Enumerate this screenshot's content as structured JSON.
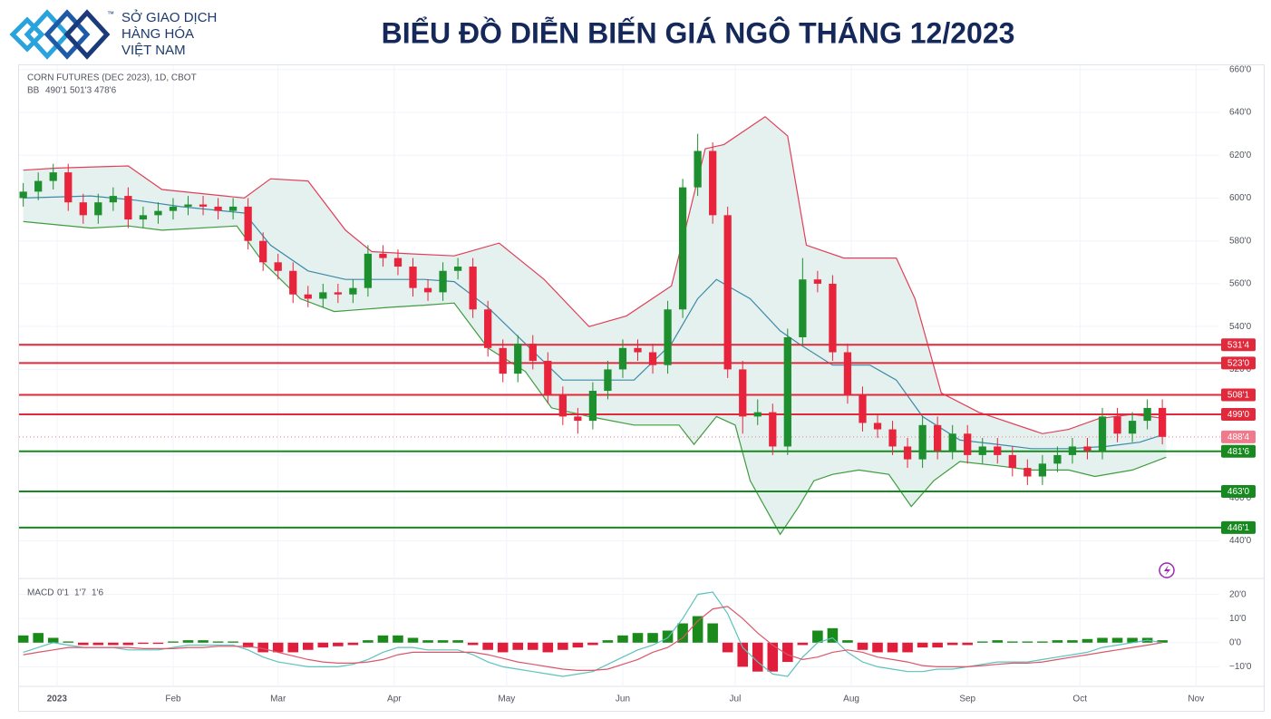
{
  "header": {
    "brand": [
      "SỞ GIAO DỊCH",
      "HÀNG HÓA",
      "VIỆT NAM"
    ],
    "trademark": "™",
    "title": "BIỂU ĐỒ DIỄN BIẾN GIÁ NGÔ THÁNG 12/2023"
  },
  "chart_data": [
    {
      "type": "candlestick",
      "title": "CORN FUTURES (DEC 2023), 1D, CBOT",
      "indicator": "BB",
      "up_color": "#1e8f2e",
      "down_color": "#e8243c",
      "grid": true,
      "xlim": [
        -9.4,
        309
      ],
      "xticks": [
        {
          "value": 0,
          "label": "2023"
        },
        {
          "value": 31,
          "label": "Feb"
        },
        {
          "value": 59,
          "label": "Mar"
        },
        {
          "value": 90,
          "label": "Apr"
        },
        {
          "value": 120,
          "label": "May"
        },
        {
          "value": 151,
          "label": "Jun"
        },
        {
          "value": 181,
          "label": "Jul"
        },
        {
          "value": 212,
          "label": "Aug"
        },
        {
          "value": 243,
          "label": "Sep"
        },
        {
          "value": 273,
          "label": "Oct"
        },
        {
          "value": 304,
          "label": "Nov"
        }
      ],
      "ylim": [
        430,
        662
      ],
      "yticks": [
        {
          "value": 440,
          "label": "440'0"
        },
        {
          "value": 460,
          "label": "460'0"
        },
        {
          "value": 480,
          "label": "480'0"
        },
        {
          "value": 500,
          "label": "500'0"
        },
        {
          "value": 520,
          "label": "520'0"
        },
        {
          "value": 540,
          "label": "540'0"
        },
        {
          "value": 560,
          "label": "560'0"
        },
        {
          "value": 580,
          "label": "580'0"
        },
        {
          "value": 600,
          "label": "600'0"
        },
        {
          "value": 620,
          "label": "620'0"
        },
        {
          "value": 640,
          "label": "640'0"
        },
        {
          "value": 660,
          "label": "660'0"
        }
      ],
      "x": [
        -9,
        -5,
        -1,
        3,
        7,
        11,
        15,
        19,
        23,
        27,
        31,
        35,
        39,
        43,
        47,
        51,
        55,
        59,
        63,
        67,
        71,
        75,
        79,
        83,
        87,
        91,
        95,
        99,
        103,
        107,
        111,
        115,
        119,
        123,
        127,
        131,
        135,
        139,
        143,
        147,
        151,
        155,
        159,
        163,
        167,
        171,
        175,
        179,
        183,
        187,
        191,
        195,
        199,
        203,
        207,
        211,
        215,
        219,
        223,
        227,
        231,
        235,
        239,
        243,
        247,
        251,
        255,
        259,
        263,
        267,
        271,
        275,
        279,
        283,
        287,
        291,
        295
      ],
      "open": [
        600,
        603,
        608,
        612,
        598,
        592,
        598,
        601,
        590,
        592,
        594,
        596,
        597,
        596,
        594,
        596,
        580,
        570,
        566,
        555,
        553,
        556,
        555,
        558,
        574,
        572,
        568,
        558,
        556,
        566,
        568,
        548,
        530,
        518,
        532,
        524,
        508,
        498,
        496,
        510,
        520,
        530,
        528,
        522,
        548,
        605,
        622,
        592,
        520,
        498,
        500,
        484,
        535,
        562,
        560,
        528,
        508,
        495,
        492,
        484,
        478,
        494,
        482,
        490,
        480,
        484,
        480,
        474,
        470,
        476,
        480,
        484,
        482,
        498,
        490,
        496,
        502
      ],
      "high": [
        607,
        612,
        616,
        616,
        602,
        602,
        605,
        605,
        596,
        598,
        600,
        601,
        601,
        600,
        600,
        600,
        584,
        574,
        570,
        559,
        560,
        560,
        562,
        578,
        578,
        576,
        572,
        562,
        570,
        572,
        572,
        552,
        534,
        536,
        536,
        528,
        512,
        502,
        514,
        524,
        534,
        534,
        532,
        552,
        609,
        630,
        626,
        596,
        524,
        506,
        504,
        539,
        572,
        566,
        564,
        532,
        512,
        499,
        496,
        488,
        498,
        498,
        494,
        494,
        488,
        488,
        484,
        478,
        480,
        484,
        488,
        488,
        502,
        502,
        500,
        506,
        506
      ],
      "low": [
        596,
        599,
        604,
        594,
        588,
        588,
        594,
        586,
        586,
        588,
        590,
        592,
        592,
        590,
        590,
        576,
        566,
        562,
        551,
        549,
        549,
        551,
        551,
        554,
        568,
        564,
        554,
        552,
        552,
        562,
        544,
        526,
        514,
        514,
        520,
        504,
        494,
        490,
        492,
        506,
        516,
        524,
        518,
        518,
        544,
        601,
        588,
        516,
        490,
        494,
        480,
        480,
        531,
        556,
        524,
        504,
        491,
        488,
        480,
        474,
        474,
        478,
        478,
        476,
        476,
        476,
        470,
        466,
        466,
        472,
        476,
        478,
        478,
        486,
        486,
        492,
        485
      ],
      "close": [
        603,
        608,
        612,
        598,
        592,
        598,
        601,
        590,
        592,
        594,
        596,
        597,
        596,
        594,
        596,
        580,
        570,
        566,
        555,
        553,
        556,
        555,
        558,
        574,
        572,
        568,
        558,
        556,
        566,
        568,
        548,
        530,
        518,
        532,
        524,
        508,
        498,
        496,
        510,
        520,
        530,
        528,
        522,
        548,
        605,
        622,
        592,
        520,
        498,
        500,
        484,
        535,
        562,
        560,
        528,
        508,
        495,
        492,
        484,
        478,
        494,
        482,
        490,
        480,
        484,
        480,
        474,
        470,
        476,
        480,
        484,
        482,
        498,
        490,
        496,
        502,
        488.5
      ],
      "bands": [
        {
          "color": "#3d8aa8",
          "value": 490.125,
          "value_label": "490'1",
          "x": [
            -9,
            9,
            21,
            33,
            50,
            57,
            67,
            77,
            89,
            98,
            106,
            115,
            125,
            135,
            144,
            154,
            164,
            171,
            176,
            185,
            193,
            198,
            207,
            217,
            224,
            231,
            241,
            251,
            260,
            270,
            280,
            289,
            296
          ],
          "values": [
            600,
            601,
            599,
            596,
            593,
            578,
            566,
            562,
            562,
            562,
            561,
            549,
            532,
            515,
            515,
            515,
            532,
            553,
            562,
            553,
            538,
            532,
            522,
            522,
            515,
            498,
            487,
            485,
            483,
            483,
            484,
            486,
            490
          ]
        },
        {
          "color": "#e0405a",
          "value": 501.375,
          "value_label": "501'3",
          "x": [
            -9,
            0,
            19,
            28,
            50,
            57,
            67,
            77,
            84,
            94,
            106,
            118,
            130,
            142,
            152,
            164,
            173,
            178,
            189,
            195,
            200,
            210,
            224,
            229,
            236,
            246,
            263,
            270,
            278,
            287,
            296
          ],
          "values": [
            613,
            614,
            615,
            604,
            600,
            609,
            608,
            585,
            575,
            574,
            573,
            579,
            562,
            540,
            545,
            559,
            623,
            625,
            638,
            629,
            578,
            572,
            572,
            553,
            509,
            500,
            490,
            492,
            497,
            499,
            497
          ]
        },
        {
          "color": "#3f9c3f",
          "value": 478.75,
          "value_label": "478'6",
          "x": [
            -9,
            9,
            19,
            28,
            48,
            55,
            65,
            74,
            89,
            98,
            106,
            115,
            125,
            132,
            142,
            154,
            166,
            170,
            176,
            181,
            185,
            193,
            198,
            202,
            207,
            214,
            222,
            228,
            234,
            241,
            251,
            260,
            270,
            277,
            287,
            296
          ],
          "values": [
            589,
            586,
            587,
            585,
            587,
            570,
            553,
            547,
            549,
            550,
            551,
            530,
            519,
            502,
            498,
            494,
            494,
            485,
            498,
            494,
            468,
            443,
            456,
            468,
            471,
            473,
            471,
            456,
            468,
            477,
            475,
            473,
            473,
            470,
            473,
            479
          ]
        }
      ],
      "band_fill": "#e4f1ef",
      "levels": [
        {
          "value": 531.5,
          "label": "531'4",
          "color": "#e0293a"
        },
        {
          "value": 523,
          "label": "523'0",
          "color": "#e0293a"
        },
        {
          "value": 508.125,
          "label": "508'1",
          "color": "#e0293a"
        },
        {
          "value": 499,
          "label": "499'0",
          "color": "#e0293a"
        },
        {
          "value": 488.5,
          "label": "488'4",
          "color": "#f07a8c",
          "style": "dotted"
        },
        {
          "value": 481.75,
          "label": "481'6",
          "color": "#178a1f"
        },
        {
          "value": 463,
          "label": "463'0",
          "color": "#178a1f"
        },
        {
          "value": 446.125,
          "label": "446'1",
          "color": "#178a1f"
        }
      ]
    },
    {
      "type": "macd",
      "title": "MACD",
      "up_color": "#1a8a1a",
      "down_color": "#e01e3c",
      "ylim": [
        -15.5,
        24
      ],
      "yticks": [
        {
          "value": -10,
          "label": "−10'0"
        },
        {
          "value": 0,
          "label": "0'0"
        },
        {
          "value": 10,
          "label": "10'0"
        },
        {
          "value": 20,
          "label": "20'0"
        }
      ],
      "x": [
        -9,
        -5,
        -1,
        3,
        7,
        11,
        15,
        19,
        23,
        27,
        31,
        35,
        39,
        43,
        47,
        51,
        55,
        59,
        63,
        67,
        71,
        75,
        79,
        83,
        87,
        91,
        95,
        99,
        103,
        107,
        111,
        115,
        119,
        123,
        127,
        131,
        135,
        139,
        143,
        147,
        151,
        155,
        159,
        163,
        167,
        171,
        175,
        179,
        183,
        187,
        191,
        195,
        199,
        203,
        207,
        211,
        215,
        219,
        223,
        227,
        231,
        235,
        239,
        243,
        247,
        251,
        255,
        259,
        263,
        267,
        271,
        275,
        279,
        283,
        287,
        291,
        295
      ],
      "histogram": {
        "color": "#1a8a1a",
        "value": 0.125,
        "value_label": "0'1",
        "values": [
          3,
          4,
          2,
          0.5,
          -1,
          -1,
          -1,
          -1,
          -0.5,
          -0.5,
          0.5,
          1,
          1,
          0.5,
          0.5,
          -2,
          -4,
          -4,
          -4,
          -3,
          -2,
          -1.5,
          -1,
          1,
          3,
          3,
          2,
          1,
          1,
          1,
          -1,
          -3,
          -4,
          -3,
          -3,
          -4,
          -3,
          -2,
          -1,
          1,
          3,
          4,
          4,
          5,
          8,
          11,
          8,
          -4,
          -10,
          -12,
          -12,
          -8,
          -1,
          5,
          6,
          1,
          -3,
          -4,
          -4,
          -4,
          -2,
          -2,
          -1,
          -1,
          0.5,
          1,
          0.5,
          0.5,
          0.5,
          1,
          1,
          1.5,
          2,
          2,
          2,
          2,
          1
        ]
      },
      "series": [
        {
          "color": "#5ec2bb",
          "value": 1.875,
          "value_label": "1'7",
          "values": [
            -4,
            -2,
            0,
            -1,
            -2,
            -2,
            -2,
            -3,
            -3,
            -3,
            -2,
            -1,
            -1,
            -1,
            -1,
            -3,
            -6,
            -8,
            -9,
            -10,
            -10,
            -10,
            -9,
            -7,
            -4,
            -2,
            -2,
            -3,
            -3,
            -3,
            -5,
            -8,
            -10,
            -11,
            -12,
            -13,
            -14,
            -13,
            -12,
            -9,
            -6,
            -3,
            -1,
            2,
            10,
            20,
            21,
            12,
            -2,
            -8,
            -13,
            -14,
            -6,
            0,
            2,
            -4,
            -8,
            -10,
            -11,
            -12,
            -12,
            -11,
            -11,
            -10,
            -9,
            -8,
            -8,
            -8,
            -7,
            -6,
            -5,
            -4,
            -2,
            -1,
            0,
            1,
            0
          ]
        },
        {
          "color": "#d9576b",
          "value": 1.75,
          "value_label": "1'6",
          "values": [
            -5,
            -4,
            -3,
            -2,
            -2,
            -2,
            -2,
            -2,
            -2.5,
            -2.5,
            -2.5,
            -2,
            -2,
            -1.5,
            -1.5,
            -1.5,
            -2.5,
            -4,
            -5.5,
            -7,
            -8,
            -8.5,
            -8.5,
            -8,
            -7,
            -5,
            -4,
            -4,
            -4,
            -4,
            -4,
            -5,
            -6.5,
            -8,
            -9,
            -10,
            -11,
            -11.5,
            -11.5,
            -11,
            -9,
            -7,
            -4,
            -2,
            2,
            9,
            14,
            15,
            10,
            4,
            -1,
            -5,
            -7,
            -6,
            -4,
            -3,
            -4,
            -6,
            -7,
            -8,
            -9.5,
            -10,
            -10,
            -10,
            -9.5,
            -9,
            -8.5,
            -8.5,
            -8,
            -7,
            -6,
            -5,
            -4,
            -3,
            -2,
            -1,
            0
          ]
        }
      ]
    }
  ]
}
